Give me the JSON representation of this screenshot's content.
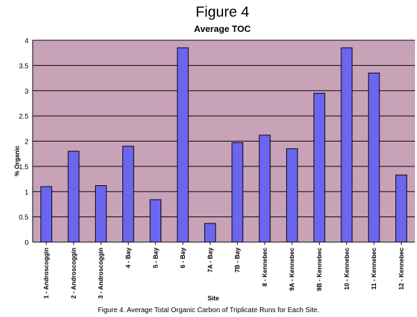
{
  "figure": {
    "title": "Figure 4",
    "subtitle": "Average TOC",
    "caption": "Figure 4.  Average Total Organic Carbon of Triplicate Runs for Each Site."
  },
  "chart_data": {
    "type": "bar",
    "title": "Average TOC",
    "xlabel": "Site",
    "ylabel": "% Organic",
    "ylim": [
      0,
      4
    ],
    "yticks": [
      0,
      0.5,
      1,
      1.5,
      2,
      2.5,
      3,
      3.5,
      4
    ],
    "grid": true,
    "legend": "none",
    "bar_color": "#6b66ee",
    "plot_bg": "#c8a2b6",
    "categories": [
      "1 - Androscoggin",
      "2 - Androscoggin",
      "3 - Androscoggin",
      "4 - Bay",
      "5 - Bay",
      "6 - Bay",
      "7A - Bay",
      "7B - Bay",
      "8 - Kennebec",
      "9A - Kennebec",
      "9B - Kennebec",
      "10 - Kennebec",
      "11 - Kennebec",
      "12 - Kennebec"
    ],
    "values": [
      1.1,
      1.8,
      1.12,
      1.9,
      0.84,
      3.85,
      0.37,
      1.97,
      2.12,
      1.85,
      2.95,
      3.85,
      3.35,
      1.33
    ]
  }
}
